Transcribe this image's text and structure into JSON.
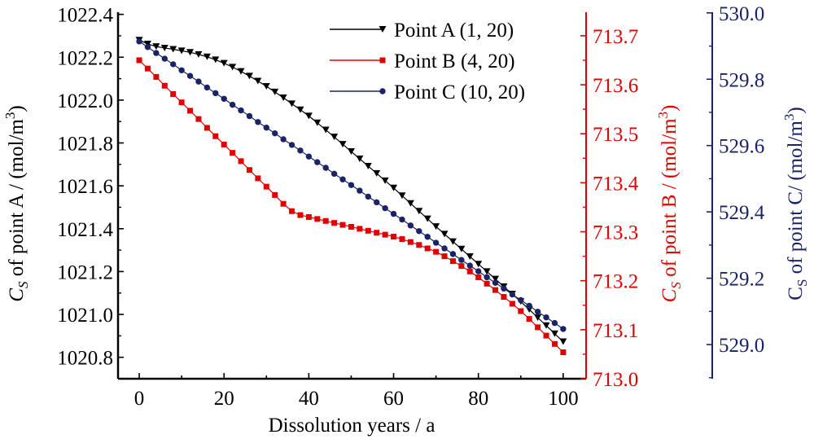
{
  "chart_data": {
    "type": "line",
    "xlabel": "Dissolution years / a",
    "xlim": [
      -5,
      105.4
    ],
    "xticks": [
      0,
      20,
      40,
      60,
      80,
      100
    ],
    "x": [
      0,
      2,
      4,
      6,
      8,
      10,
      12,
      14,
      16,
      18,
      20,
      22,
      24,
      26,
      28,
      30,
      32,
      34,
      36,
      38,
      40,
      42,
      44,
      46,
      48,
      50,
      52,
      54,
      56,
      58,
      60,
      62,
      64,
      66,
      68,
      70,
      72,
      74,
      76,
      78,
      80,
      82,
      84,
      86,
      88,
      90,
      92,
      94,
      96,
      98,
      100
    ],
    "axes": [
      {
        "id": "A",
        "side": "left",
        "color": "#000000",
        "label_prefix": "C",
        "label_sub": "S",
        "label_rest": " of point A / (mol/m",
        "label_sup": "3",
        "label_end": ")",
        "italic": true,
        "ylim": [
          1020.7,
          1022.41
        ],
        "ticks": [
          1020.8,
          1021.0,
          1021.2,
          1021.4,
          1021.6,
          1021.8,
          1022.0,
          1022.2,
          1022.4
        ],
        "tick_labels": [
          "1020.8",
          "1021.0",
          "1021.2",
          "1021.4",
          "1021.6",
          "1021.8",
          "1022.0",
          "1022.2",
          "1022.4"
        ]
      },
      {
        "id": "B",
        "side": "right",
        "color": "#e00000",
        "label_prefix": "C",
        "label_sub": "S",
        "label_rest": " of point B / (mol/m",
        "label_sup": "3",
        "label_end": ")",
        "italic": true,
        "ylim": [
          713.0,
          713.748
        ],
        "ticks": [
          713.0,
          713.1,
          713.2,
          713.3,
          713.4,
          713.5,
          713.6,
          713.7
        ],
        "tick_labels": [
          "713.0",
          "713.1",
          "713.2",
          "713.3",
          "713.4",
          "713.5",
          "713.6",
          "713.7"
        ]
      },
      {
        "id": "C",
        "side": "right-outer",
        "color": "#1a2366",
        "label_prefix": "C",
        "label_sub": "S",
        "label_rest": " of point C/ (mol/m",
        "label_sup": "3",
        "label_end": ")",
        "italic": false,
        "ylim": [
          528.897,
          530.002
        ],
        "ticks": [
          529.0,
          529.2,
          529.4,
          529.6,
          529.8,
          530.0
        ],
        "tick_labels": [
          "529.0",
          "529.2",
          "529.4",
          "529.6",
          "529.8",
          "530.0"
        ]
      }
    ],
    "series": [
      {
        "name": "Point A (1, 20)",
        "axis": "A",
        "color": "#000000",
        "marker": "triangle-down",
        "values": [
          1022.28,
          1022.262,
          1022.25,
          1022.243,
          1022.237,
          1022.23,
          1022.223,
          1022.213,
          1022.202,
          1022.188,
          1022.172,
          1022.154,
          1022.134,
          1022.112,
          1022.089,
          1022.064,
          1022.038,
          1022.011,
          1021.983,
          1021.955,
          1021.926,
          1021.894,
          1021.861,
          1021.828,
          1021.794,
          1021.76,
          1021.726,
          1021.692,
          1021.658,
          1021.624,
          1021.59,
          1021.554,
          1021.518,
          1021.482,
          1021.446,
          1021.41,
          1021.375,
          1021.34,
          1021.305,
          1021.27,
          1021.235,
          1021.2,
          1021.165,
          1021.13,
          1021.095,
          1021.06,
          1021.023,
          1020.985,
          1020.948,
          1020.91,
          1020.873
        ]
      },
      {
        "name": "Point B (4, 20)",
        "axis": "B",
        "color": "#e00000",
        "marker": "square",
        "values": [
          713.65,
          713.633,
          713.616,
          713.598,
          713.581,
          713.564,
          713.547,
          713.53,
          713.512,
          713.495,
          713.478,
          713.461,
          713.444,
          713.426,
          713.409,
          713.392,
          713.375,
          713.357,
          713.342,
          713.334,
          713.33,
          713.326,
          713.322,
          713.318,
          713.314,
          713.31,
          713.306,
          713.302,
          713.298,
          713.294,
          713.29,
          713.285,
          713.279,
          713.273,
          713.266,
          713.259,
          713.25,
          713.24,
          713.23,
          713.219,
          713.207,
          713.194,
          713.181,
          713.167,
          713.153,
          713.138,
          713.122,
          713.105,
          713.088,
          713.071,
          713.054
        ]
      },
      {
        "name": "Point C (10, 20)",
        "axis": "C",
        "color": "#1a2366",
        "marker": "circle",
        "values": [
          529.914,
          529.897,
          529.879,
          529.862,
          529.845,
          529.827,
          529.81,
          529.793,
          529.775,
          529.758,
          529.741,
          529.723,
          529.706,
          529.689,
          529.671,
          529.654,
          529.637,
          529.619,
          529.602,
          529.585,
          529.567,
          529.55,
          529.533,
          529.515,
          529.498,
          529.481,
          529.464,
          529.446,
          529.429,
          529.411,
          529.394,
          529.377,
          529.359,
          529.342,
          529.325,
          529.307,
          529.29,
          529.273,
          529.255,
          529.238,
          529.221,
          529.203,
          529.186,
          529.169,
          529.151,
          529.134,
          529.117,
          529.099,
          529.082,
          529.065,
          529.047
        ]
      }
    ],
    "legend": "top-center",
    "grid": false
  }
}
